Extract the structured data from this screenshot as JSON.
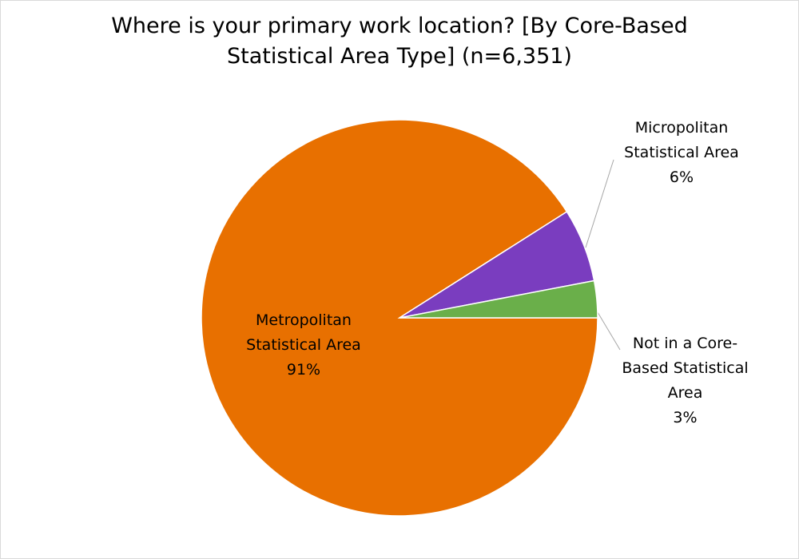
{
  "chart_data": {
    "type": "pie",
    "title": "Where is your primary work location? [By Core-Based Statistical Area Type] (n=6,351)",
    "categories": [
      "Metropolitan Statistical Area",
      "Micropolitan Statistical Area",
      "Not in a Core-Based Statistical Area"
    ],
    "values": [
      91,
      6,
      3
    ],
    "value_labels": [
      "91%",
      "6%",
      "3%"
    ],
    "colors": [
      "#e87000",
      "#7a3dbf",
      "#6aaf4a"
    ]
  }
}
